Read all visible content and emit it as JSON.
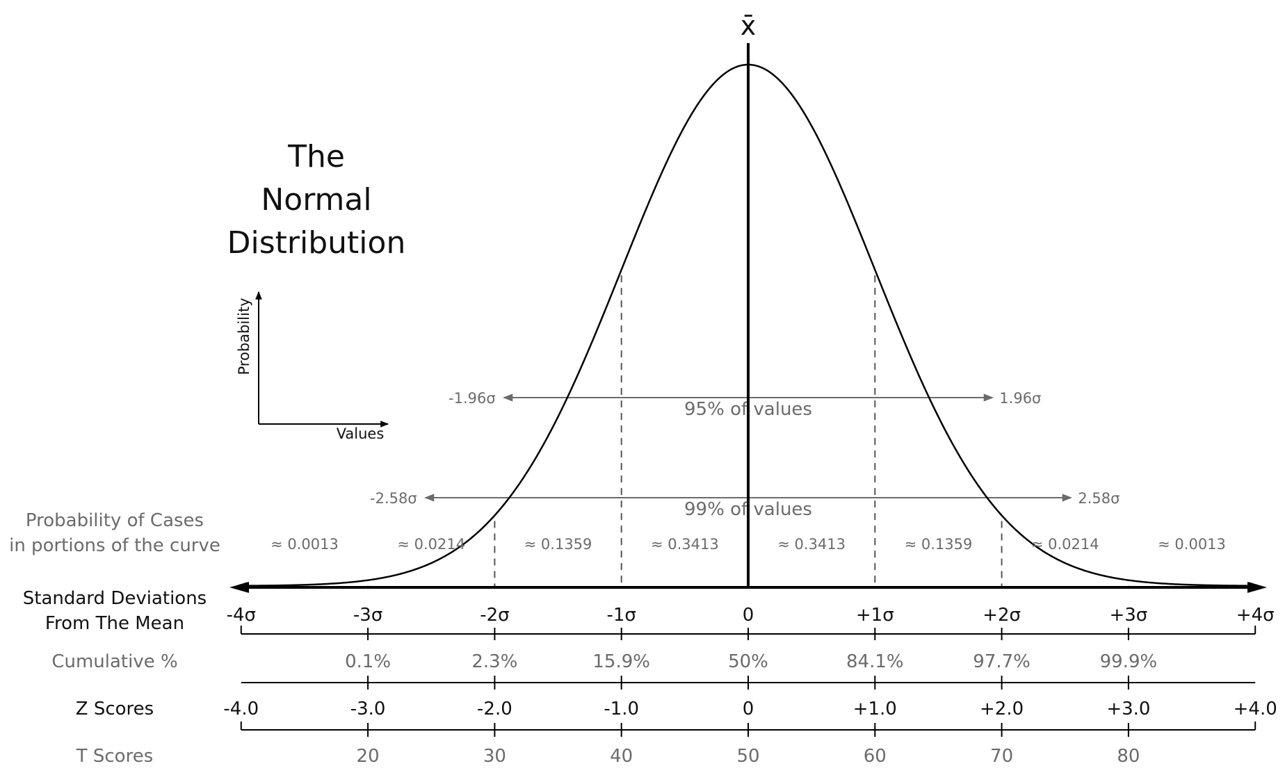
{
  "title_lines": [
    "The",
    "Normal",
    "Distribution"
  ],
  "mean_symbol": "x̄",
  "legend": {
    "y_axis": "Probability",
    "x_axis": "Values"
  },
  "row_labels": {
    "probability_line1": "Probability of Cases",
    "probability_line2": "in portions of the curve",
    "std_line1": "Standard Deviations",
    "std_line2": "From The Mean",
    "cumulative": "Cumulative %",
    "z": "Z Scores",
    "t": "T Scores"
  },
  "intervals": [
    {
      "label_left": "-1.96σ",
      "label_right": "1.96σ",
      "sigma": 1.96,
      "caption": "95% of values"
    },
    {
      "label_left": "-2.58σ",
      "label_right": "2.58σ",
      "sigma": 2.58,
      "caption": "99% of values"
    }
  ],
  "proportions": [
    "≈ 0.0013",
    "≈ 0.0214",
    "≈ 0.1359",
    "≈ 0.3413",
    "≈ 0.3413",
    "≈ 0.1359",
    "≈ 0.0214",
    "≈ 0.0013"
  ],
  "sd_labels": [
    "-4σ",
    "-3σ",
    "-2σ",
    "-1σ",
    "0",
    "+1σ",
    "+2σ",
    "+3σ",
    "+4σ"
  ],
  "cumulative": [
    "0.1%",
    "2.3%",
    "15.9%",
    "50%",
    "84.1%",
    "97.7%",
    "99.9%"
  ],
  "z_scores": [
    "-4.0",
    "-3.0",
    "-2.0",
    "-1.0",
    "0",
    "+1.0",
    "+2.0",
    "+3.0",
    "+4.0"
  ],
  "t_scores": [
    "20",
    "30",
    "40",
    "50",
    "60",
    "70",
    "80"
  ],
  "colors": {
    "line": "#000000",
    "gray": "#6b6b6b",
    "dark_text": "#111111"
  }
}
